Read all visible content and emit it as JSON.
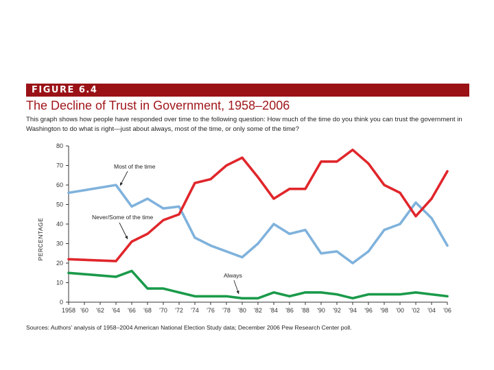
{
  "figure": {
    "label": "FIGURE 6.4",
    "title": "The Decline of Trust in Government, 1958–2006",
    "description": "This graph shows how people have responded over time to the following question: How much of the time do you think you can trust the government in Washington to do what is right—just about always, most of the time, or only some of the time?",
    "source": "Sources: Authors' analysis of 1958–2004 American National Election Study data; December 2006 Pew Research Center poll.",
    "colors": {
      "banner": "#9a1216",
      "title": "#a0171c"
    }
  },
  "chart_data": {
    "type": "line",
    "ylabel": "PERCENTAGE",
    "xlabel": "",
    "ylim": [
      0,
      80
    ],
    "xlim": [
      1958,
      2006
    ],
    "y_ticks": [
      "0",
      "10",
      "20",
      "30",
      "40",
      "50",
      "60",
      "70",
      "80"
    ],
    "x_ticks": [
      "1958",
      "'60",
      "'62",
      "'64",
      "'66",
      "'68",
      "'70",
      "'72",
      "'74",
      "'76",
      "'78",
      "'80",
      "'82",
      "'84",
      "'86",
      "'88",
      "'90",
      "'92",
      "'94",
      "'96",
      "'98",
      "'00",
      "'02",
      "'04",
      "'06"
    ],
    "grid": false,
    "series": [
      {
        "name": "Most of the time",
        "color": "#7fb2dc",
        "x": [
          1958,
          1964,
          1966,
          1968,
          1970,
          1972,
          1974,
          1976,
          1978,
          1980,
          1982,
          1984,
          1986,
          1988,
          1990,
          1992,
          1994,
          1996,
          1998,
          2000,
          2002,
          2004,
          2006
        ],
        "values": [
          56,
          60,
          49,
          53,
          48,
          49,
          33,
          29,
          26,
          23,
          30,
          40,
          35,
          37,
          25,
          26,
          20,
          26,
          37,
          40,
          51,
          43,
          29
        ]
      },
      {
        "name": "Never/Some of the time",
        "color": "#e0262b",
        "x": [
          1958,
          1964,
          1966,
          1968,
          1970,
          1972,
          1974,
          1976,
          1978,
          1980,
          1982,
          1984,
          1986,
          1988,
          1990,
          1992,
          1994,
          1996,
          1998,
          2000,
          2002,
          2004,
          2006
        ],
        "values": [
          22,
          21,
          31,
          35,
          42,
          45,
          61,
          63,
          70,
          74,
          64,
          53,
          58,
          58,
          72,
          72,
          78,
          71,
          60,
          56,
          44,
          53,
          67
        ]
      },
      {
        "name": "Always",
        "color": "#1a9a4a",
        "x": [
          1958,
          1964,
          1966,
          1968,
          1970,
          1972,
          1974,
          1976,
          1978,
          1980,
          1982,
          1984,
          1986,
          1988,
          1990,
          1992,
          1994,
          1996,
          1998,
          2000,
          2002,
          2004,
          2006
        ],
        "values": [
          15,
          13,
          16,
          7,
          7,
          5,
          3,
          3,
          3,
          2,
          2,
          5,
          3,
          5,
          5,
          4,
          2,
          4,
          4,
          4,
          5,
          4,
          3
        ]
      }
    ],
    "annotations": [
      {
        "text": "Most of the time",
        "series": "Most of the time"
      },
      {
        "text": "Never/Some of the time",
        "series": "Never/Some of the time"
      },
      {
        "text": "Always",
        "series": "Always"
      }
    ]
  }
}
